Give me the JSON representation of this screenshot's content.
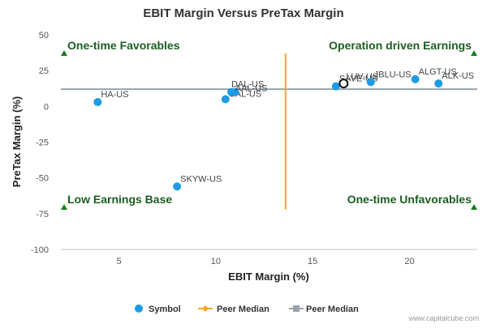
{
  "chart_data": {
    "type": "scatter",
    "title": "EBIT Margin Versus PreTax Margin",
    "xlabel": "EBIT Margin (%)",
    "ylabel": "PreTax Margin (%)",
    "xlim": [
      2,
      23.5
    ],
    "ylim": [
      -100,
      50
    ],
    "xticks": [
      "5",
      "10",
      "15",
      "20"
    ],
    "yticks": [
      "50",
      "25",
      "0",
      "-25",
      "-50",
      "-75",
      "-100"
    ],
    "xtick_values": [
      5,
      10,
      15,
      20
    ],
    "ytick_values": [
      50,
      25,
      0,
      -25,
      -50,
      -75,
      -100
    ],
    "grid": false,
    "peer_median_x": 13.6,
    "peer_median_y": 12,
    "peer_median_y_range": [
      -72,
      37
    ],
    "series": [
      {
        "name": "Symbol",
        "points": [
          {
            "label": "HA-US",
            "x": 3.9,
            "y": 3
          },
          {
            "label": "SKYW-US",
            "x": 8.0,
            "y": -56
          },
          {
            "label": "UAL-US",
            "x": 10.5,
            "y": 5
          },
          {
            "label": "DAL-US",
            "x": 10.8,
            "y": 10
          },
          {
            "label": "AAL-US",
            "x": 11.0,
            "y": 10
          },
          {
            "label": "SAVE-US",
            "x": 16.2,
            "y": 14
          },
          {
            "label": "LUV-US",
            "x": 16.6,
            "y": 16
          },
          {
            "label": "JBLU-US",
            "x": 18.0,
            "y": 17
          },
          {
            "label": "ALGT-US",
            "x": 20.3,
            "y": 19
          },
          {
            "label": "ALK-US",
            "x": 21.5,
            "y": 16
          }
        ],
        "highlighted": "LUV-US"
      }
    ],
    "quadrant_labels": {
      "top_left": "One-time Favorables",
      "top_right": "Operation driven Earnings",
      "bottom_left": "Low Earnings Base",
      "bottom_right": "One-time Unfavorables"
    },
    "legend": [
      "Symbol",
      "Peer Median",
      "Peer Median"
    ],
    "legend_position": "bottom",
    "colors": {
      "point": "#1e9be3",
      "v_median": "#f5a623",
      "h_median": "#9aa3ad",
      "quad_label": "#1b5e20",
      "triangle": "#1b7d1b"
    }
  },
  "credit": "www.capitalcube.com"
}
